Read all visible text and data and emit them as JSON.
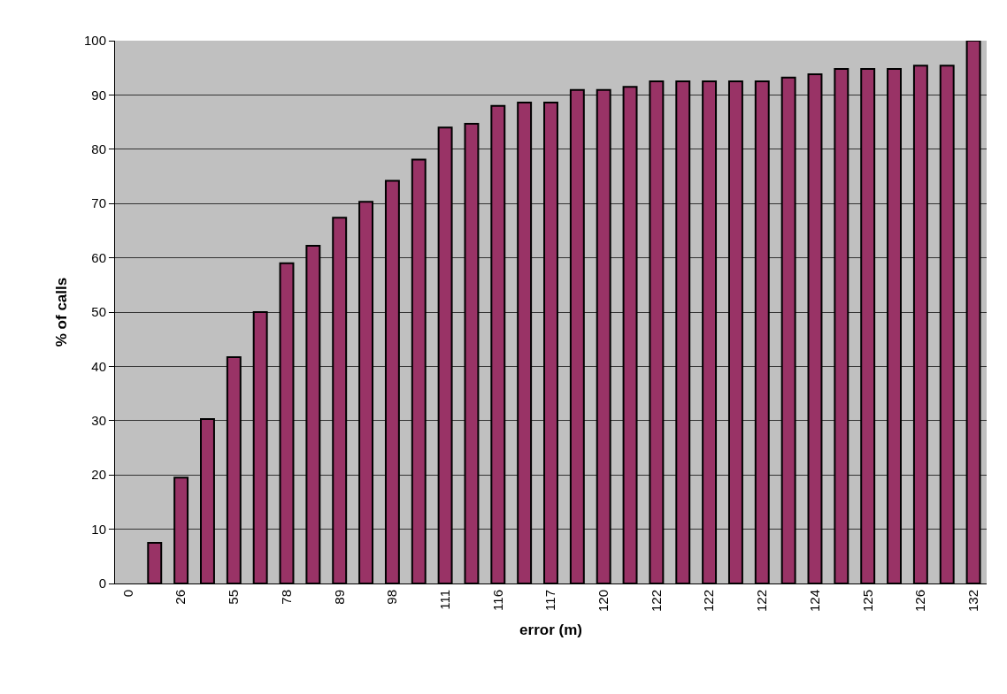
{
  "chart_data": {
    "type": "bar",
    "xlabel": "error (m)",
    "ylabel": "% of calls",
    "categories": [
      "0",
      null,
      "26",
      null,
      "55",
      null,
      "78",
      null,
      "89",
      null,
      "98",
      null,
      "111",
      null,
      "116",
      null,
      "117",
      null,
      "120",
      null,
      "122",
      null,
      "122",
      null,
      "122",
      null,
      "124",
      null,
      "125",
      null,
      "126",
      null,
      "132"
    ],
    "values": [
      null,
      7.5,
      19.5,
      30.3,
      41.7,
      50,
      59,
      62.2,
      67.4,
      70.3,
      74.2,
      78.1,
      84,
      84.7,
      88,
      88.6,
      88.6,
      90.9,
      90.9,
      91.5,
      92.5,
      92.5,
      92.5,
      92.5,
      92.5,
      93.2,
      93.8,
      94.8,
      94.8,
      94.8,
      95.4,
      95.4,
      100
    ],
    "color": "#993366",
    "ylim": [
      0,
      100
    ],
    "yticks": [
      0,
      10,
      20,
      30,
      40,
      50,
      60,
      70,
      80,
      90,
      100
    ],
    "grid": "y"
  }
}
